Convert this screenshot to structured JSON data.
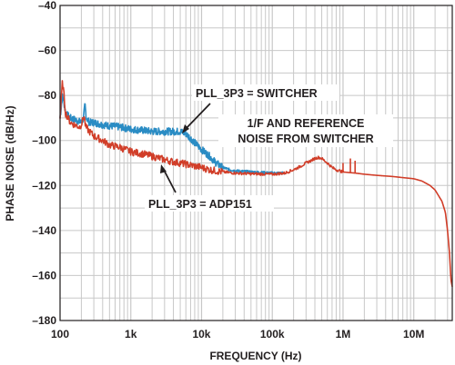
{
  "chart_data": {
    "type": "line",
    "xlabel": "FREQUENCY (Hz)",
    "ylabel": "PHASE NOISE (dB/Hz)",
    "x_scale": "log",
    "xlim": [
      100,
      35000000
    ],
    "ylim": [
      -180,
      -40
    ],
    "x_ticks": [
      {
        "value": 100,
        "label": "100"
      },
      {
        "value": 1000,
        "label": "1k"
      },
      {
        "value": 10000,
        "label": "10k"
      },
      {
        "value": 100000,
        "label": "100k"
      },
      {
        "value": 1000000,
        "label": "1M"
      },
      {
        "value": 10000000,
        "label": "10M"
      }
    ],
    "y_ticks": [
      {
        "value": -40,
        "label": "–40"
      },
      {
        "value": -60,
        "label": "–60"
      },
      {
        "value": -80,
        "label": "–80"
      },
      {
        "value": -100,
        "label": "–100"
      },
      {
        "value": -120,
        "label": "–120"
      },
      {
        "value": -140,
        "label": "–140"
      },
      {
        "value": -160,
        "label": "–160"
      },
      {
        "value": -180,
        "label": "–180"
      }
    ],
    "grid": true,
    "series": [
      {
        "name": "PLL_3P3 = SWITCHER",
        "color": "#2a8cc4",
        "points": [
          [
            100,
            -90
          ],
          [
            108,
            -80
          ],
          [
            112,
            -82
          ],
          [
            120,
            -88
          ],
          [
            140,
            -90
          ],
          [
            170,
            -91
          ],
          [
            200,
            -92
          ],
          [
            215,
            -90
          ],
          [
            225,
            -84
          ],
          [
            235,
            -90
          ],
          [
            260,
            -92
          ],
          [
            300,
            -92
          ],
          [
            400,
            -93
          ],
          [
            500,
            -93.5
          ],
          [
            700,
            -94
          ],
          [
            1000,
            -95
          ],
          [
            1500,
            -95.5
          ],
          [
            2000,
            -96
          ],
          [
            3000,
            -96
          ],
          [
            4000,
            -96
          ],
          [
            5000,
            -96
          ],
          [
            6000,
            -97
          ],
          [
            7000,
            -99
          ],
          [
            8000,
            -101
          ],
          [
            10000,
            -104
          ],
          [
            13000,
            -107
          ],
          [
            16000,
            -110
          ],
          [
            20000,
            -112
          ],
          [
            25000,
            -113
          ],
          [
            30000,
            -113.5
          ],
          [
            50000,
            -114
          ],
          [
            100000,
            -114.5
          ],
          [
            150000,
            -114.5
          ]
        ]
      },
      {
        "name": "PLL_3P3 = ADP151",
        "color": "#d13e29",
        "points": [
          [
            100,
            -90
          ],
          [
            108,
            -74
          ],
          [
            112,
            -78
          ],
          [
            120,
            -88
          ],
          [
            140,
            -92
          ],
          [
            160,
            -93
          ],
          [
            190,
            -94
          ],
          [
            205,
            -92
          ],
          [
            218,
            -89
          ],
          [
            230,
            -94
          ],
          [
            260,
            -96
          ],
          [
            300,
            -98
          ],
          [
            400,
            -100
          ],
          [
            500,
            -102
          ],
          [
            700,
            -103
          ],
          [
            1000,
            -105
          ],
          [
            1500,
            -106
          ],
          [
            2000,
            -107
          ],
          [
            3000,
            -108.5
          ],
          [
            4000,
            -109.5
          ],
          [
            5000,
            -110
          ],
          [
            7000,
            -111
          ],
          [
            10000,
            -112
          ],
          [
            13000,
            -113
          ],
          [
            20000,
            -114
          ],
          [
            30000,
            -114.5
          ],
          [
            50000,
            -114.8
          ],
          [
            100000,
            -115
          ],
          [
            150000,
            -114.5
          ],
          [
            200000,
            -113
          ],
          [
            250000,
            -111.5
          ],
          [
            300000,
            -110
          ],
          [
            350000,
            -109
          ],
          [
            400000,
            -108
          ],
          [
            450000,
            -107.5
          ],
          [
            500000,
            -108
          ],
          [
            600000,
            -110
          ],
          [
            700000,
            -112
          ],
          [
            800000,
            -113
          ],
          [
            900000,
            -113.5
          ],
          [
            1000000,
            -114
          ],
          [
            1500000,
            -114.5
          ],
          [
            2000000,
            -115
          ],
          [
            3000000,
            -115.5
          ],
          [
            5000000,
            -116
          ],
          [
            7000000,
            -116.5
          ],
          [
            10000000,
            -117
          ],
          [
            13000000,
            -118
          ],
          [
            17000000,
            -120
          ],
          [
            20000000,
            -122
          ],
          [
            25000000,
            -127
          ],
          [
            28000000,
            -132
          ],
          [
            30000000,
            -140
          ],
          [
            32000000,
            -150
          ],
          [
            33500000,
            -162
          ],
          [
            35000000,
            -165
          ]
        ]
      }
    ],
    "annotations": {
      "switcher_label": "PLL_3P3 = SWITCHER",
      "adp151_label": "PLL_3P3 = ADP151",
      "noise_line1": "1/F AND REFERENCE",
      "noise_line2": "NOISE FROM SWITCHER"
    }
  }
}
